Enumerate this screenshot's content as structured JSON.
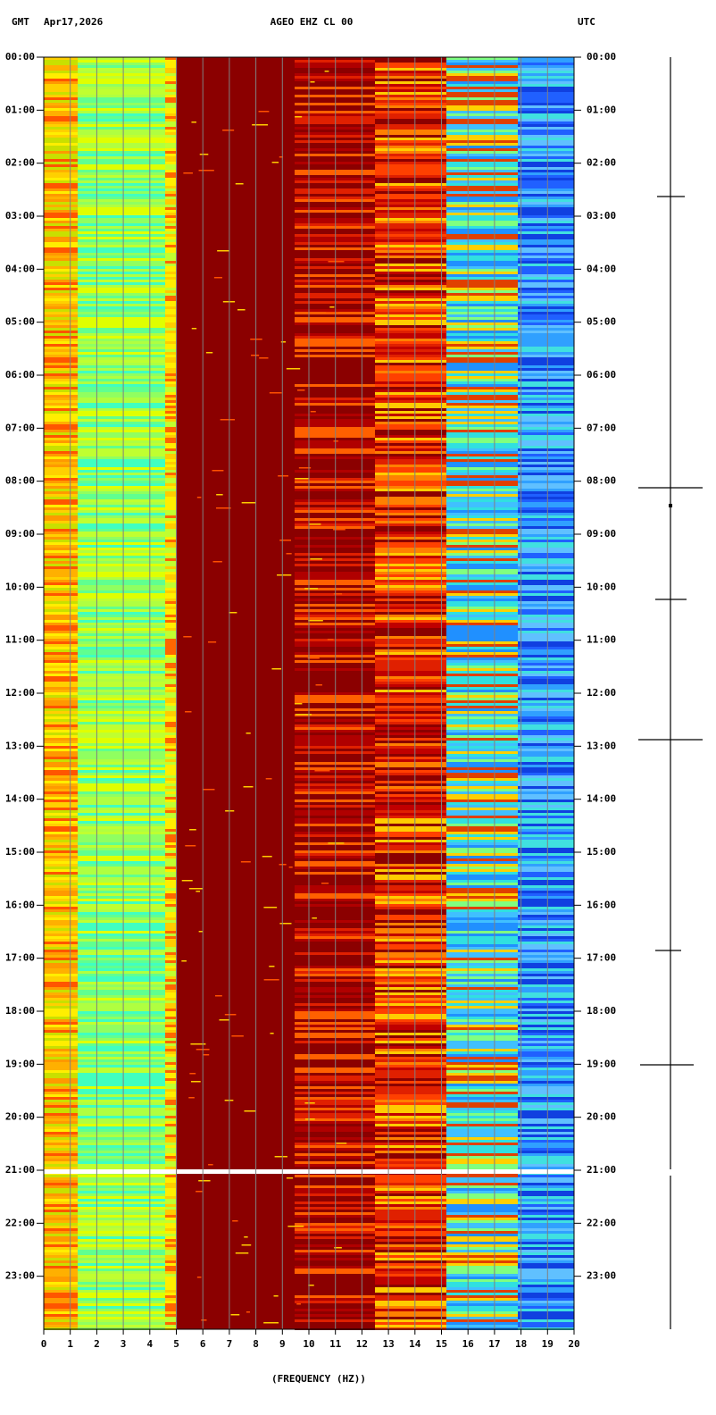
{
  "chart_data": {
    "type": "spectrogram",
    "timezone_left": "GMT",
    "date": "Apr17,2026",
    "title": "AGEO EHZ CL 00",
    "timezone_right": "UTC",
    "x_label": "(FREQUENCY (HZ))",
    "xlim": [
      0,
      20
    ],
    "xticks": [
      0,
      1,
      2,
      3,
      4,
      5,
      6,
      7,
      8,
      9,
      10,
      11,
      12,
      13,
      14,
      15,
      16,
      17,
      18,
      19,
      20
    ],
    "ylim": [
      0,
      24
    ],
    "yticks": [
      {
        "value": 0,
        "label": "00:00"
      },
      {
        "value": 1,
        "label": "01:00"
      },
      {
        "value": 2,
        "label": "02:00"
      },
      {
        "value": 3,
        "label": "03:00"
      },
      {
        "value": 4,
        "label": "04:00"
      },
      {
        "value": 5,
        "label": "05:00"
      },
      {
        "value": 6,
        "label": "06:00"
      },
      {
        "value": 7,
        "label": "07:00"
      },
      {
        "value": 8,
        "label": "08:00"
      },
      {
        "value": 9,
        "label": "09:00"
      },
      {
        "value": 10,
        "label": "10:00"
      },
      {
        "value": 11,
        "label": "11:00"
      },
      {
        "value": 12,
        "label": "12:00"
      },
      {
        "value": 13,
        "label": "13:00"
      },
      {
        "value": 14,
        "label": "14:00"
      },
      {
        "value": 15,
        "label": "15:00"
      },
      {
        "value": 16,
        "label": "16:00"
      },
      {
        "value": 17,
        "label": "17:00"
      },
      {
        "value": 18,
        "label": "18:00"
      },
      {
        "value": 19,
        "label": "19:00"
      },
      {
        "value": 20,
        "label": "20:00"
      },
      {
        "value": 21,
        "label": "21:00"
      },
      {
        "value": 22,
        "label": "22:00"
      },
      {
        "value": 23,
        "label": "23:00"
      }
    ],
    "grid": true
  }
}
